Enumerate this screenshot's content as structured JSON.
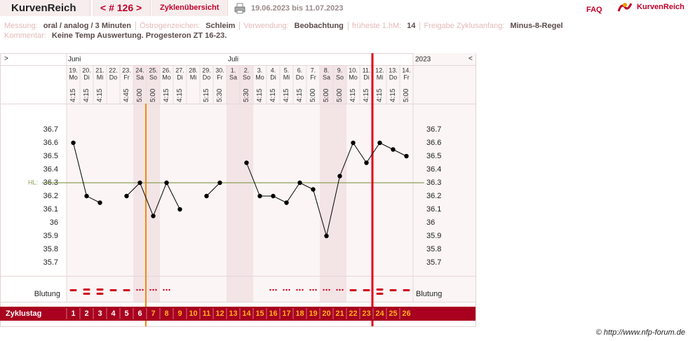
{
  "header": {
    "app_title": "KurvenReich",
    "cycle_nav": "< # 126 >",
    "overview_tab": "Zyklenübersicht",
    "date_range": "19.06.2023 bis 11.07.2023",
    "faq": "FAQ",
    "logo": "KurvenReich"
  },
  "info": {
    "fields": [
      {
        "label": "Messung:",
        "value": "oral / analog / 3 Minuten"
      },
      {
        "label": "Östrogenzeichen:",
        "value": "Schleim"
      },
      {
        "label": "Verwendung:",
        "value": "Beobachtung"
      },
      {
        "label": "früheste 1.hM:",
        "value": "14"
      },
      {
        "label": "Freigabe Zyklusanfang:",
        "value": "Minus-8-Regel"
      }
    ],
    "comment_label": "Kommentar:",
    "comment": "Keine Temp Auswertung. Progesteron ZT 16-23."
  },
  "chart_data": {
    "type": "line",
    "nav_left": ">",
    "nav_right": "<",
    "year": "2023",
    "months": [
      "Juni",
      null,
      null,
      null,
      null,
      null,
      null,
      null,
      null,
      null,
      null,
      null,
      "Juli",
      null,
      null,
      null,
      null,
      null,
      null,
      null,
      null,
      null,
      null,
      null,
      null,
      null
    ],
    "dates": [
      "19.",
      "20.",
      "21.",
      "22.",
      "23.",
      "24.",
      "25.",
      "26.",
      "27.",
      "28.",
      "29.",
      "30.",
      "1.",
      "2.",
      "3.",
      "4.",
      "5.",
      "6.",
      "7.",
      "8.",
      "9.",
      "10.",
      "11.",
      "12.",
      "13.",
      "14."
    ],
    "weekdays": [
      "Mo",
      "Di",
      "Mi",
      "Do",
      "Fr",
      "Sa",
      "So",
      "Mo",
      "Di",
      "Mi",
      "Do",
      "Fr",
      "Sa",
      "So",
      "Mo",
      "Di",
      "Mi",
      "Do",
      "Fr",
      "Sa",
      "So",
      "Mo",
      "Di",
      "Mi",
      "Do",
      "Fr"
    ],
    "times": [
      "4:15",
      "4:15",
      "4:15",
      null,
      "4:45",
      "5:00",
      "5:00",
      "4:15",
      "4:15",
      null,
      "5:15",
      "5:30",
      null,
      "5:30",
      "4:15",
      "4:15",
      "4:15",
      "4:15",
      "5:00",
      "5:00",
      "5:00",
      "4:15",
      "4:15",
      "4:15",
      "4:15",
      "5:00"
    ],
    "values": [
      36.6,
      36.2,
      36.15,
      null,
      36.2,
      36.3,
      36.05,
      36.3,
      36.1,
      null,
      36.2,
      36.3,
      null,
      36.45,
      36.2,
      36.2,
      36.15,
      36.3,
      36.25,
      35.9,
      36.35,
      36.6,
      36.45,
      36.6,
      36.55,
      36.5
    ],
    "color": "#000000",
    "ylim": [
      35.6,
      36.9
    ],
    "yticks": [
      35.7,
      35.8,
      35.9,
      36,
      36.1,
      36.2,
      36.3,
      36.4,
      36.5,
      36.6,
      36.7
    ],
    "hl": {
      "value": 36.3,
      "label": "HL:"
    },
    "bleeding_label": "Blutung",
    "cycle_day_label": "Zyklustag",
    "categories": [
      1,
      2,
      3,
      4,
      5,
      6,
      7,
      8,
      9,
      10,
      11,
      12,
      13,
      14,
      15,
      16,
      17,
      18,
      19,
      20,
      21,
      22,
      23,
      24,
      25,
      26
    ]
  },
  "footer": "© http://www.nfp-forum.de"
}
